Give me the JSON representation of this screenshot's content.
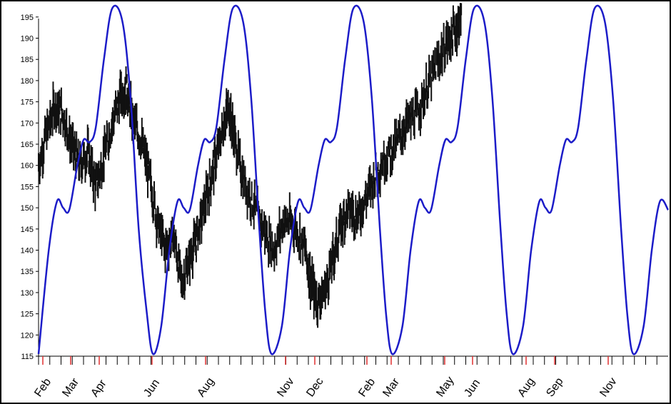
{
  "chart_data": {
    "type": "line",
    "title": "",
    "xlabel": "",
    "ylabel": "",
    "ylim": [
      115,
      198
    ],
    "y_ticks": [
      115,
      120,
      125,
      130,
      135,
      140,
      145,
      150,
      155,
      160,
      165,
      170,
      175,
      180,
      185,
      190,
      195
    ],
    "x_month_labels": [
      "Feb",
      "Mar",
      "Apr",
      "Jun",
      "Aug",
      "Nov",
      "Dec",
      "Feb",
      "Mar",
      "May",
      "Jun",
      "Aug",
      "Sep",
      "Nov"
    ],
    "grid": false,
    "legend": "none",
    "colors": {
      "price": "#111111",
      "cycle": "#1c1cc8",
      "major_tick": "#e03030",
      "minor_tick": "#000000"
    },
    "series": [
      {
        "key": "price",
        "style": "ohlc-bars",
        "points": [
          [
            0.0,
            160
          ],
          [
            0.4,
            168
          ],
          [
            0.8,
            174
          ],
          [
            1.2,
            172
          ],
          [
            1.6,
            165
          ],
          [
            2.0,
            160
          ],
          [
            2.4,
            163
          ],
          [
            2.8,
            155
          ],
          [
            3.2,
            162
          ],
          [
            3.6,
            170
          ],
          [
            4.0,
            176
          ],
          [
            4.3,
            178
          ],
          [
            4.6,
            171
          ],
          [
            5.0,
            166
          ],
          [
            5.4,
            158
          ],
          [
            5.8,
            147
          ],
          [
            6.2,
            140
          ],
          [
            6.6,
            144
          ],
          [
            7.0,
            132
          ],
          [
            7.4,
            138
          ],
          [
            7.8,
            144
          ],
          [
            8.2,
            152
          ],
          [
            8.6,
            160
          ],
          [
            9.0,
            168
          ],
          [
            9.3,
            174
          ],
          [
            9.6,
            166
          ],
          [
            10.0,
            157
          ],
          [
            10.5,
            151
          ],
          [
            11.0,
            145
          ],
          [
            11.5,
            140
          ],
          [
            12.0,
            147
          ],
          [
            12.5,
            146
          ],
          [
            13.0,
            141
          ],
          [
            13.3,
            133
          ],
          [
            13.6,
            128
          ],
          [
            14.0,
            130
          ],
          [
            14.4,
            138
          ],
          [
            14.8,
            146
          ],
          [
            15.2,
            150
          ],
          [
            15.6,
            148
          ],
          [
            16.0,
            152
          ],
          [
            16.5,
            158
          ],
          [
            17.0,
            162
          ],
          [
            17.5,
            165
          ],
          [
            18.0,
            170
          ],
          [
            18.5,
            172
          ],
          [
            19.0,
            178
          ],
          [
            19.5,
            184
          ],
          [
            20.0,
            189
          ],
          [
            20.4,
            192
          ],
          [
            20.7,
            195
          ]
        ]
      },
      {
        "key": "cycle",
        "style": "line",
        "points": [
          [
            0.0,
            115.5
          ],
          [
            0.5,
            140
          ],
          [
            0.9,
            151.5
          ],
          [
            1.2,
            150
          ],
          [
            1.5,
            149.5
          ],
          [
            1.9,
            160
          ],
          [
            2.2,
            166
          ],
          [
            2.5,
            165.5
          ],
          [
            2.8,
            169
          ],
          [
            3.2,
            185
          ],
          [
            3.6,
            197
          ],
          [
            4.1,
            194
          ],
          [
            4.5,
            176
          ],
          [
            4.9,
            145
          ],
          [
            5.3,
            125
          ],
          [
            5.6,
            115.5
          ],
          [
            6.0,
            122
          ],
          [
            6.4,
            140
          ],
          [
            6.8,
            151.5
          ],
          [
            7.1,
            150
          ],
          [
            7.4,
            149.5
          ],
          [
            7.8,
            160
          ],
          [
            8.1,
            166
          ],
          [
            8.4,
            165.5
          ],
          [
            8.7,
            169
          ],
          [
            9.1,
            185
          ],
          [
            9.5,
            197
          ],
          [
            10.0,
            194
          ],
          [
            10.4,
            176
          ],
          [
            10.8,
            145
          ],
          [
            11.1,
            125
          ],
          [
            11.4,
            115.5
          ],
          [
            11.9,
            122
          ],
          [
            12.3,
            140
          ],
          [
            12.7,
            151.5
          ],
          [
            13.0,
            150
          ],
          [
            13.3,
            149.5
          ],
          [
            13.7,
            160
          ],
          [
            14.0,
            166
          ],
          [
            14.3,
            165.5
          ],
          [
            14.6,
            169
          ],
          [
            15.0,
            185
          ],
          [
            15.4,
            197
          ],
          [
            15.9,
            194
          ],
          [
            16.3,
            176
          ],
          [
            16.7,
            145
          ],
          [
            17.0,
            125
          ],
          [
            17.3,
            115.5
          ],
          [
            17.8,
            122
          ],
          [
            18.2,
            140
          ],
          [
            18.6,
            151.5
          ],
          [
            18.9,
            150
          ],
          [
            19.2,
            149.5
          ],
          [
            19.6,
            160
          ],
          [
            19.9,
            166
          ],
          [
            20.2,
            165.5
          ],
          [
            20.5,
            169
          ],
          [
            20.9,
            185
          ],
          [
            21.3,
            197
          ],
          [
            21.8,
            194
          ],
          [
            22.2,
            176
          ],
          [
            22.6,
            145
          ],
          [
            22.9,
            125
          ],
          [
            23.2,
            115.5
          ],
          [
            23.7,
            122
          ],
          [
            24.1,
            140
          ],
          [
            24.5,
            151.5
          ],
          [
            24.8,
            150
          ],
          [
            25.1,
            149.5
          ],
          [
            25.5,
            160
          ],
          [
            25.8,
            166
          ],
          [
            26.1,
            165.5
          ],
          [
            26.4,
            169
          ],
          [
            26.8,
            185
          ],
          [
            27.2,
            197
          ],
          [
            27.7,
            194
          ],
          [
            28.1,
            176
          ],
          [
            28.5,
            145
          ],
          [
            28.8,
            125
          ],
          [
            29.1,
            115.5
          ],
          [
            29.6,
            122
          ],
          [
            30.0,
            140
          ],
          [
            30.4,
            151.5
          ],
          [
            30.8,
            149.5
          ]
        ]
      }
    ]
  }
}
